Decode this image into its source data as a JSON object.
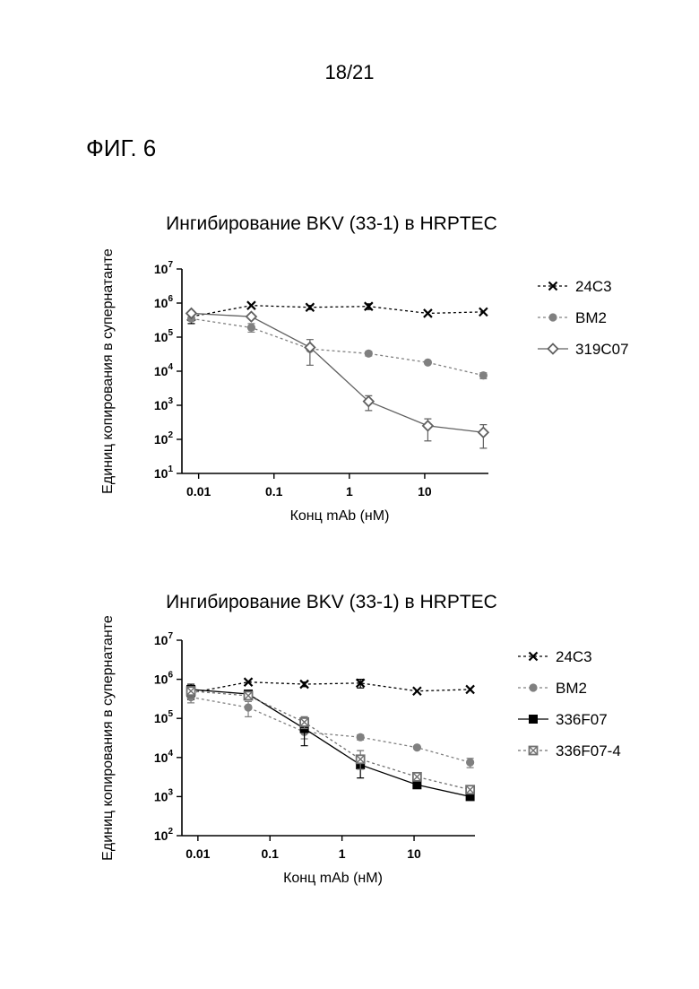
{
  "page": {
    "page_number": "18/21",
    "figure_label": "ФИГ. 6"
  },
  "chart_data": [
    {
      "type": "line",
      "title": "Ингибирование BKV (33-1) в HRPTEC",
      "xlabel": "Конц mAb (нМ)",
      "ylabel": "Единиц копирования в супернатанте",
      "xscale": "log",
      "yscale": "log",
      "xlim": [
        0.006,
        70
      ],
      "ylim": [
        10,
        10000000
      ],
      "xticks": [
        {
          "value": 0.01,
          "label": "0.01"
        },
        {
          "value": 0.1,
          "label": "0.1"
        },
        {
          "value": 1,
          "label": "1"
        },
        {
          "value": 10,
          "label": "10"
        }
      ],
      "yticks": [
        {
          "value": 10,
          "base": "10",
          "exp": "1"
        },
        {
          "value": 100,
          "base": "10",
          "exp": "2"
        },
        {
          "value": 1000,
          "base": "10",
          "exp": "3"
        },
        {
          "value": 10000,
          "base": "10",
          "exp": "4"
        },
        {
          "value": 100000,
          "base": "10",
          "exp": "5"
        },
        {
          "value": 1000000,
          "base": "10",
          "exp": "6"
        },
        {
          "value": 10000000,
          "base": "10",
          "exp": "7"
        }
      ],
      "legend_position": "right",
      "x": [
        0.008,
        0.05,
        0.3,
        1.8,
        11,
        60
      ],
      "series": [
        {
          "name": "24C3",
          "marker": "x",
          "dash": true,
          "color": "#000000",
          "values": [
            400000,
            850000,
            750000,
            800000,
            500000,
            550000
          ],
          "err_low": [
            250000,
            850000,
            650000,
            650000,
            500000,
            550000
          ],
          "err_high": [
            500000,
            850000,
            850000,
            950000,
            500000,
            550000
          ]
        },
        {
          "name": "BM2",
          "marker": "circle",
          "dash": true,
          "color": "#808080",
          "values": [
            350000,
            190000,
            45000,
            33000,
            18000,
            7500
          ],
          "err_low": [
            350000,
            140000,
            45000,
            28000,
            18000,
            6000
          ],
          "err_high": [
            350000,
            250000,
            45000,
            38000,
            18000,
            9000
          ]
        },
        {
          "name": "319C07",
          "marker": "diamond",
          "dash": false,
          "color": "#606060",
          "values": [
            500000,
            400000,
            50000,
            1300,
            250,
            160
          ],
          "err_low": [
            500000,
            400000,
            15000,
            700,
            90,
            55
          ],
          "err_high": [
            500000,
            400000,
            85000,
            1900,
            400,
            270
          ]
        }
      ]
    },
    {
      "type": "line",
      "title": "Ингибирование BKV (33-1) в HRPTEC",
      "xlabel": "Конц mAb (нМ)",
      "ylabel": "Единиц копирования в супернатанте",
      "xscale": "log",
      "yscale": "log",
      "xlim": [
        0.006,
        70
      ],
      "ylim": [
        100,
        10000000
      ],
      "xticks": [
        {
          "value": 0.01,
          "label": "0.01"
        },
        {
          "value": 0.1,
          "label": "0.1"
        },
        {
          "value": 1,
          "label": "1"
        },
        {
          "value": 10,
          "label": "10"
        }
      ],
      "yticks": [
        {
          "value": 100,
          "base": "10",
          "exp": "2"
        },
        {
          "value": 1000,
          "base": "10",
          "exp": "3"
        },
        {
          "value": 10000,
          "base": "10",
          "exp": "4"
        },
        {
          "value": 100000,
          "base": "10",
          "exp": "5"
        },
        {
          "value": 1000000,
          "base": "10",
          "exp": "6"
        },
        {
          "value": 10000000,
          "base": "10",
          "exp": "7"
        }
      ],
      "legend_position": "right",
      "x": [
        0.008,
        0.05,
        0.3,
        1.8,
        11,
        60
      ],
      "series": [
        {
          "name": "24C3",
          "marker": "x",
          "dash": true,
          "color": "#000000",
          "values": [
            450000,
            850000,
            750000,
            800000,
            500000,
            550000
          ],
          "err_low": [
            300000,
            850000,
            650000,
            600000,
            500000,
            550000
          ],
          "err_high": [
            600000,
            850000,
            850000,
            1000000,
            500000,
            550000
          ]
        },
        {
          "name": "BM2",
          "marker": "circle",
          "dash": true,
          "color": "#808080",
          "values": [
            350000,
            190000,
            45000,
            33000,
            18000,
            7500
          ],
          "err_low": [
            250000,
            110000,
            30000,
            28000,
            18000,
            5500
          ],
          "err_high": [
            450000,
            270000,
            60000,
            38000,
            18000,
            9500
          ]
        },
        {
          "name": "336F07",
          "marker": "square",
          "dash": false,
          "color": "#000000",
          "values": [
            550000,
            420000,
            55000,
            6500,
            2000,
            1000
          ],
          "err_low": [
            350000,
            300000,
            20000,
            3000,
            1700,
            900
          ],
          "err_high": [
            750000,
            520000,
            90000,
            10000,
            2300,
            1100
          ]
        },
        {
          "name": "336F07-4",
          "marker": "xsquare",
          "dash": true,
          "color": "#707070",
          "values": [
            500000,
            380000,
            80000,
            9000,
            3200,
            1500
          ],
          "err_low": [
            350000,
            300000,
            55000,
            5000,
            2600,
            1300
          ],
          "err_high": [
            650000,
            460000,
            110000,
            15000,
            3800,
            1700
          ]
        }
      ]
    }
  ]
}
